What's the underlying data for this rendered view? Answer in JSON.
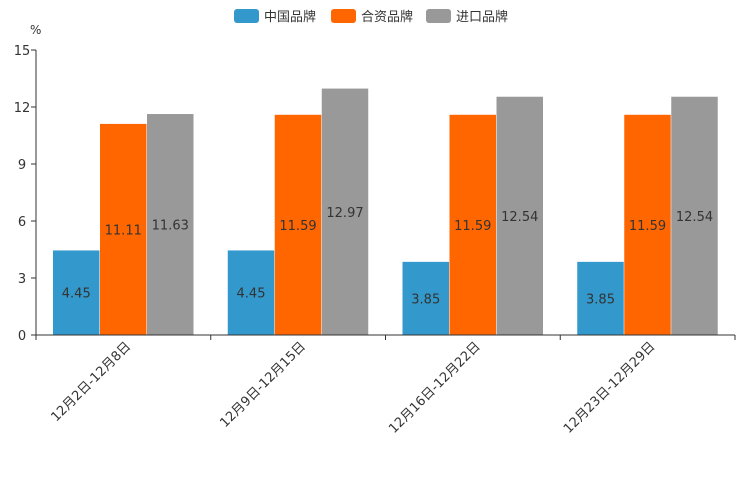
{
  "chart_data": {
    "type": "bar",
    "title": "",
    "xlabel": "",
    "ylabel": "%",
    "ylim": [
      0,
      15
    ],
    "yticks": [
      0,
      3,
      6,
      9,
      12,
      15
    ],
    "grid": false,
    "legend_position": "top-center",
    "categories": [
      "12月2日-12月8日",
      "12月9日-12月15日",
      "12月16日-12月22日",
      "12月23日-12月29日"
    ],
    "series": [
      {
        "name": "中国品牌",
        "color": "#3399cc",
        "values": [
          4.45,
          4.45,
          3.85,
          3.85
        ]
      },
      {
        "name": "合资品牌",
        "color": "#ff6600",
        "values": [
          11.11,
          11.59,
          11.59,
          11.59
        ]
      },
      {
        "name": "进口品牌",
        "color": "#999999",
        "values": [
          11.63,
          12.97,
          12.54,
          12.54
        ]
      }
    ]
  }
}
